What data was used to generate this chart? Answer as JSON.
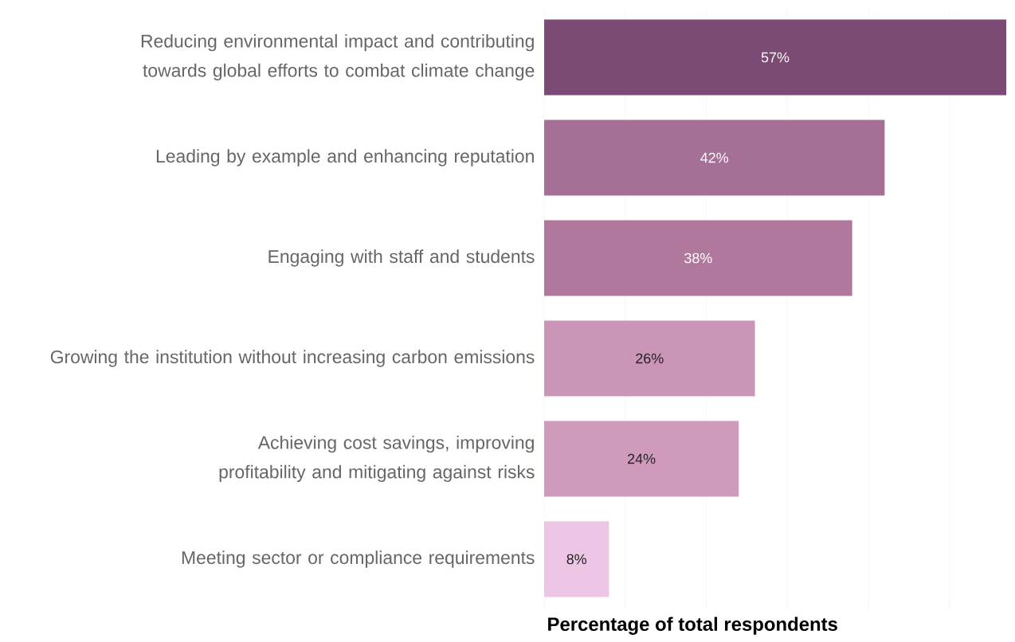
{
  "chart_data": {
    "type": "bar",
    "orientation": "horizontal",
    "xlabel": "Percentage of total respondents",
    "categories": [
      "Reducing environmental impact and contributing towards global efforts to combat climate change",
      "Leading by example and enhancing reputation",
      "Engaging with staff and students",
      "Growing the institution without increasing carbon emissions",
      "Achieving cost savings, improving profitability and mitigating against risks",
      "Meeting sector or compliance requirements"
    ],
    "values": [
      57,
      42,
      38,
      26,
      24,
      8
    ],
    "value_labels": [
      "57%",
      "42%",
      "38%",
      "26%",
      "24%",
      "8%"
    ],
    "colors": [
      "#7b4b75",
      "#a56f96",
      "#b0789c",
      "#cb95b8",
      "#cf9abc",
      "#ecc6e4"
    ],
    "xlim": [
      0,
      57
    ],
    "xticks": [
      {
        "value": 0,
        "label": null
      },
      {
        "value": 10,
        "label": null
      },
      {
        "value": 20,
        "label": null
      },
      {
        "value": 30,
        "label": null
      },
      {
        "value": 40,
        "label": null
      },
      {
        "value": 50,
        "label": null
      }
    ],
    "tick_labels": "y",
    "grid": "x"
  }
}
